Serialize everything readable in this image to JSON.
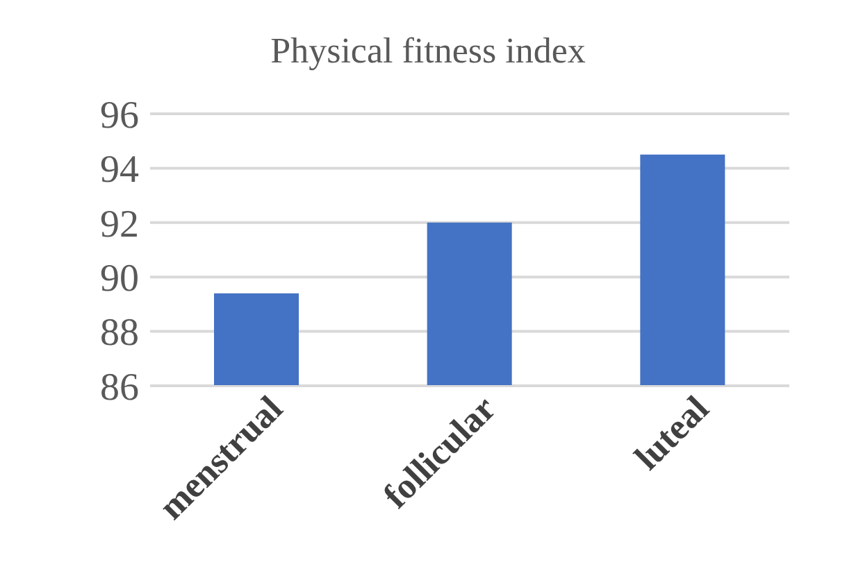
{
  "chart_data": {
    "type": "bar",
    "title": "Physical fitness index",
    "categories": [
      "menstrual",
      "follicular",
      "luteal"
    ],
    "values": [
      89.4,
      92.0,
      94.5
    ],
    "color": "#4472c4",
    "ylim": [
      86,
      96
    ],
    "yticks": [
      86,
      88,
      90,
      92,
      94,
      96
    ],
    "grid": "y"
  }
}
